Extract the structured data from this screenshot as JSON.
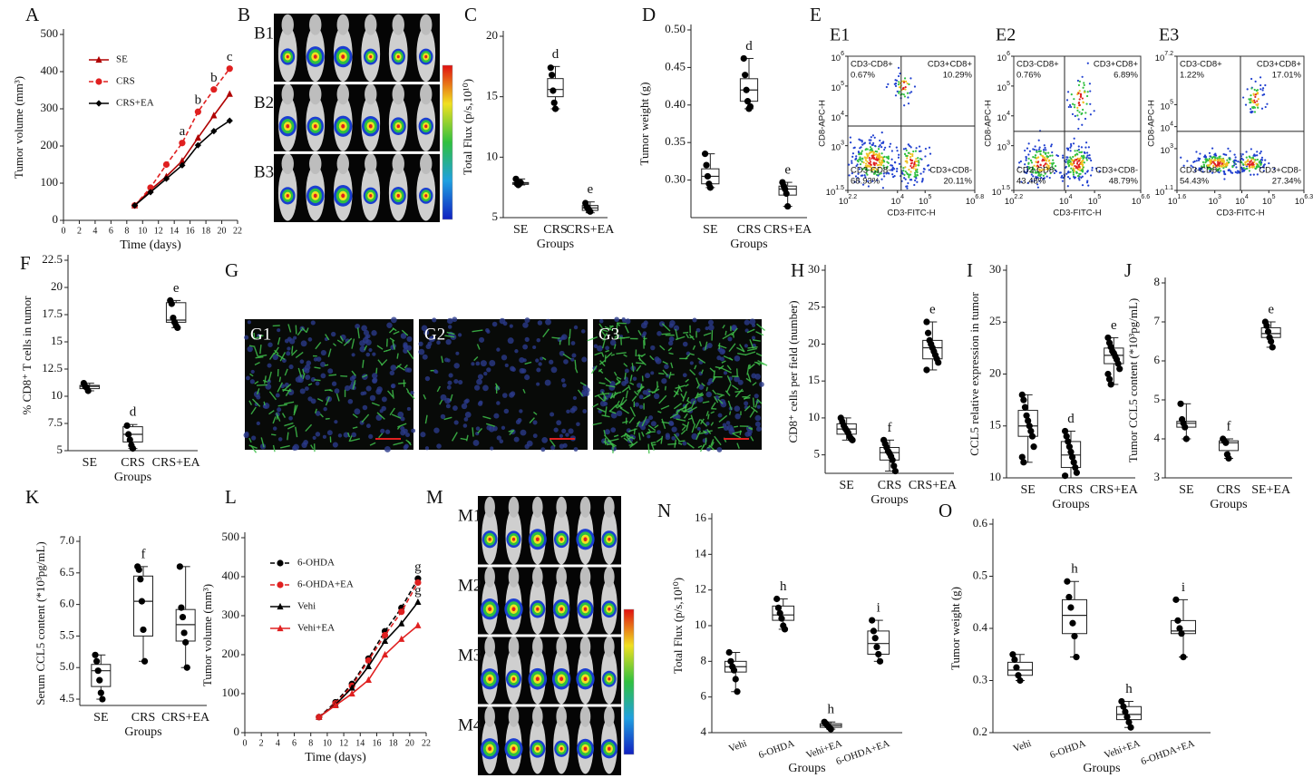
{
  "chart_data": [
    {
      "type": "line",
      "panel": "A",
      "xlabel": "Time (days)",
      "ylabel": "Tumor volume (mm³)",
      "x": [
        9,
        11,
        13,
        15,
        17,
        19,
        21
      ],
      "xlim": [
        0,
        22
      ],
      "xticks": [
        0,
        2,
        4,
        6,
        8,
        10,
        12,
        14,
        16,
        18,
        20,
        22
      ],
      "ylim": [
        0,
        500
      ],
      "yticks": [
        0,
        100,
        200,
        300,
        400,
        500
      ],
      "legend": "upper left",
      "series": [
        {
          "name": "SE",
          "color": "#b00000",
          "marker": "triangle",
          "dashed": false,
          "values": [
            40,
            82,
            118,
            160,
            222,
            282,
            340
          ]
        },
        {
          "name": "CRS",
          "color": "#e02020",
          "marker": "circle",
          "dashed": true,
          "values": [
            40,
            88,
            150,
            208,
            292,
            352,
            408
          ]
        },
        {
          "name": "CRS+EA",
          "color": "#000000",
          "marker": "diamond",
          "dashed": false,
          "values": [
            40,
            76,
            112,
            148,
            202,
            240,
            268
          ]
        }
      ],
      "annotations": [
        {
          "text": "a",
          "x": 15,
          "series": 1
        },
        {
          "text": "b",
          "x": 17,
          "series": 1
        },
        {
          "text": "b",
          "x": 19,
          "series": 1
        },
        {
          "text": "c",
          "x": 21,
          "series": 1
        }
      ]
    },
    {
      "type": "box",
      "panel": "C",
      "xlabel": "Groups",
      "ylabel": "Total Flux (p/s,10¹⁰)",
      "categories": [
        "SE",
        "CRS",
        "CRS+EA"
      ],
      "ylim": [
        5,
        20
      ],
      "yticks": [
        5,
        10,
        15,
        20
      ],
      "boxes": [
        {
          "min": 7.7,
          "q1": 7.75,
          "median": 7.85,
          "q3": 7.9,
          "max": 8.2
        },
        {
          "min": 14,
          "q1": 15,
          "median": 15.6,
          "q3": 16.5,
          "max": 17.5
        },
        {
          "min": 5.4,
          "q1": 5.6,
          "median": 5.8,
          "q3": 6,
          "max": 6.3
        }
      ],
      "points": [
        [
          8.2,
          7.8,
          7.7,
          7.8,
          7.9
        ],
        [
          17.4,
          16.8,
          15.5,
          14.5,
          14
        ],
        [
          6.2,
          5.9,
          5.8,
          5.6,
          5.5
        ]
      ],
      "letters": [
        null,
        "d",
        "e"
      ]
    },
    {
      "type": "box",
      "panel": "D",
      "xlabel": "Groups",
      "ylabel": "Tumor weight (g)",
      "categories": [
        "SE",
        "CRS",
        "CRS+EA"
      ],
      "ylim": [
        0.25,
        0.5
      ],
      "yticks": [
        {
          "value": 0.3,
          "label": "0.30"
        },
        0.35,
        {
          "value": 0.4,
          "label": "0.40"
        },
        0.45,
        {
          "value": 0.5,
          "label": "0.50"
        }
      ],
      "boxes": [
        {
          "min": 0.29,
          "q1": 0.295,
          "median": 0.305,
          "q3": 0.315,
          "max": 0.335
        },
        {
          "min": 0.395,
          "q1": 0.405,
          "median": 0.42,
          "q3": 0.435,
          "max": 0.462
        },
        {
          "min": 0.265,
          "q1": 0.28,
          "median": 0.288,
          "q3": 0.292,
          "max": 0.297
        }
      ],
      "points": [
        [
          0.335,
          0.32,
          0.305,
          0.295,
          0.29
        ],
        [
          0.462,
          0.44,
          0.42,
          0.405,
          0.395,
          0.398
        ],
        [
          0.297,
          0.292,
          0.288,
          0.282,
          0.265
        ]
      ],
      "letters": [
        null,
        "d",
        "e"
      ]
    },
    {
      "type": "box",
      "panel": "F",
      "xlabel": "Groups",
      "ylabel": "% CD8⁺ T cells in tumor",
      "categories": [
        "SE",
        "CRS",
        "CRS+EA"
      ],
      "ylim": [
        5,
        22.5
      ],
      "yticks": [
        5,
        7.5,
        10,
        12.5,
        15,
        17.5,
        20,
        22.5
      ],
      "boxes": [
        {
          "min": 10.5,
          "q1": 10.7,
          "median": 10.9,
          "q3": 11,
          "max": 11.2
        },
        {
          "min": 5.2,
          "q1": 5.8,
          "median": 6.5,
          "q3": 7.2,
          "max": 7.4
        },
        {
          "min": 16.3,
          "q1": 16.8,
          "median": 17,
          "q3": 18.6,
          "max": 18.8
        }
      ],
      "points": [
        [
          11.2,
          10.9,
          10.8,
          10.5
        ],
        [
          7.3,
          6.5,
          6,
          5.5,
          5.2
        ],
        [
          18.8,
          18.5,
          17.2,
          16.8,
          16.5,
          16.3
        ]
      ],
      "letters": [
        null,
        "d",
        "e"
      ]
    },
    {
      "type": "box",
      "panel": "H",
      "xlabel": "Groups",
      "ylabel": "CD8⁺ cells per field (number)",
      "categories": [
        "SE",
        "CRS",
        "CRS+EA"
      ],
      "ylim": [
        2.5,
        30
      ],
      "yticks": [
        5,
        10,
        15,
        20,
        25,
        30
      ],
      "boxes": [
        {
          "min": 7,
          "q1": 7.8,
          "median": 8.5,
          "q3": 9.2,
          "max": 10
        },
        {
          "min": 2.8,
          "q1": 4.3,
          "median": 5.3,
          "q3": 6,
          "max": 7
        },
        {
          "min": 16.5,
          "q1": 18,
          "median": 19.5,
          "q3": 20.5,
          "max": 23
        }
      ],
      "points": [
        [
          10,
          9.5,
          9,
          8.6,
          8.3,
          8,
          7.5,
          7.2,
          7
        ],
        [
          7,
          6.5,
          6,
          5.5,
          5.2,
          4.8,
          4.3,
          3.5,
          2.8
        ],
        [
          23,
          21.5,
          20.5,
          20,
          19.5,
          19,
          18.5,
          18,
          17.5,
          16.5
        ]
      ],
      "letters": [
        null,
        "f",
        "e"
      ]
    },
    {
      "type": "box",
      "panel": "I",
      "xlabel": "Groups",
      "ylabel": "CCL5 relative expression in tumor",
      "categories": [
        "SE",
        "CRS",
        "CRS+EA"
      ],
      "ylim": [
        10,
        30
      ],
      "yticks": [
        10,
        15,
        20,
        25,
        30
      ],
      "boxes": [
        {
          "min": 11.5,
          "q1": 14,
          "median": 15,
          "q3": 16.5,
          "max": 18
        },
        {
          "min": 10,
          "q1": 11,
          "median": 12.2,
          "q3": 13.5,
          "max": 14.5
        },
        {
          "min": 19,
          "q1": 21,
          "median": 21.8,
          "q3": 22.5,
          "max": 23.5
        }
      ],
      "points": [
        [
          18,
          17.5,
          16.8,
          16,
          15.5,
          15,
          14.5,
          14,
          13,
          12,
          11.5
        ],
        [
          14.5,
          14,
          13.5,
          13,
          12.5,
          12,
          11.5,
          11,
          10.5,
          10.2
        ],
        [
          23.5,
          23,
          22.6,
          22.2,
          22,
          21.7,
          21.4,
          21,
          20.5,
          20,
          19.5,
          19
        ]
      ],
      "letters": [
        null,
        "d",
        "e"
      ]
    },
    {
      "type": "box",
      "panel": "J",
      "xlabel": "Groups",
      "ylabel": "Tumor CCL5 content (*10³pg/mL)",
      "categories": [
        "SE",
        "CRS",
        "SE+EA"
      ],
      "ylim": [
        3,
        8
      ],
      "yticks": [
        3,
        4,
        5,
        6,
        7,
        8
      ],
      "boxes": [
        {
          "min": 4,
          "q1": 4.3,
          "median": 4.4,
          "q3": 4.45,
          "max": 4.9
        },
        {
          "min": 3.5,
          "q1": 3.7,
          "median": 3.9,
          "q3": 3.95,
          "max": 4
        },
        {
          "min": 6.35,
          "q1": 6.6,
          "median": 6.7,
          "q3": 6.85,
          "max": 7
        }
      ],
      "points": [
        [
          4.9,
          4.5,
          4.4,
          4.3,
          4
        ],
        [
          4,
          3.95,
          3.9,
          3.6,
          3.5
        ],
        [
          7,
          6.9,
          6.75,
          6.6,
          6.5,
          6.35
        ]
      ],
      "letters": [
        null,
        "f",
        "e"
      ]
    },
    {
      "type": "box",
      "panel": "K",
      "xlabel": "Groups",
      "ylabel": "Serum CCL5 content (*10³pg/mL)",
      "categories": [
        "SE",
        "CRS",
        "CRS+EA"
      ],
      "ylim": [
        4.4,
        7
      ],
      "yticks": [
        4.5,
        {
          "value": 5,
          "label": "5.0"
        },
        5.5,
        {
          "value": 6,
          "label": "6.0"
        },
        6.5,
        {
          "value": 7,
          "label": "7.0"
        }
      ],
      "boxes": [
        {
          "min": 4.5,
          "q1": 4.7,
          "median": 4.95,
          "q3": 5.05,
          "max": 5.2
        },
        {
          "min": 5.1,
          "q1": 5.5,
          "median": 6.05,
          "q3": 6.45,
          "max": 6.6
        },
        {
          "min": 5,
          "q1": 5.42,
          "median": 5.68,
          "q3": 5.92,
          "max": 6.6
        }
      ],
      "points": [
        [
          5.2,
          5.1,
          4.95,
          4.8,
          4.6,
          4.5
        ],
        [
          6.6,
          6.55,
          6.4,
          6.05,
          5.6,
          5.1
        ],
        [
          6.6,
          5.95,
          5.8,
          5.55,
          5.4,
          5
        ]
      ],
      "letters": [
        null,
        "f",
        null
      ]
    },
    {
      "type": "line",
      "panel": "L",
      "xlabel": "Time (days)",
      "ylabel": "Tumor volume (mm³)",
      "x": [
        9,
        11,
        13,
        15,
        17,
        19,
        21
      ],
      "xlim": [
        0,
        22
      ],
      "xticks": [
        0,
        2,
        4,
        6,
        8,
        10,
        12,
        14,
        16,
        18,
        20,
        22
      ],
      "ylim": [
        0,
        500
      ],
      "yticks": [
        0,
        100,
        200,
        300,
        400,
        500
      ],
      "legend": "upper left",
      "series": [
        {
          "name": "6-OHDA",
          "color": "#000000",
          "marker": "circle",
          "dashed": true,
          "values": [
            40,
            78,
            125,
            190,
            260,
            320,
            395
          ]
        },
        {
          "name": "6-OHDA+EA",
          "color": "#e02020",
          "marker": "circle",
          "dashed": true,
          "values": [
            40,
            75,
            120,
            185,
            250,
            310,
            385
          ]
        },
        {
          "name": "Vehi",
          "color": "#000000",
          "marker": "triangle",
          "dashed": false,
          "values": [
            40,
            72,
            115,
            170,
            235,
            280,
            335
          ]
        },
        {
          "name": "Vehi+EA",
          "color": "#e02020",
          "marker": "triangle",
          "dashed": false,
          "values": [
            40,
            70,
            100,
            135,
            200,
            240,
            275
          ]
        }
      ],
      "annotations": [
        {
          "text": "g",
          "x": 21,
          "series": 0
        },
        {
          "text": "g",
          "x": 21,
          "series": 2
        }
      ]
    },
    {
      "type": "box",
      "panel": "N",
      "xlabel": "Groups",
      "ylabel": "Total Flux (p/s,10¹⁰)",
      "categories": [
        "Vehi",
        "6-OHDA",
        "Vehi+EA",
        "6-OHDA+EA"
      ],
      "xtick_rotation": -20,
      "ylim": [
        4,
        16
      ],
      "yticks": [
        4,
        6,
        8,
        10,
        12,
        14,
        16
      ],
      "boxes": [
        {
          "min": 6.3,
          "q1": 7.4,
          "median": 7.7,
          "q3": 8,
          "max": 8.5
        },
        {
          "min": 9.8,
          "q1": 10.3,
          "median": 10.6,
          "q3": 11.1,
          "max": 11.5
        },
        {
          "min": 4.2,
          "q1": 4.3,
          "median": 4.4,
          "q3": 4.5,
          "max": 4.6
        },
        {
          "min": 8,
          "q1": 8.4,
          "median": 9,
          "q3": 9.7,
          "max": 10.3
        }
      ],
      "points": [
        [
          8.5,
          8,
          7.7,
          7.5,
          7,
          6.3
        ],
        [
          11.5,
          11,
          10.7,
          10.4,
          10,
          9.8
        ],
        [
          4.6,
          4.5,
          4.4,
          4.3,
          4.2
        ],
        [
          10.3,
          9.7,
          9.3,
          8.8,
          8.4,
          8
        ]
      ],
      "letters": [
        null,
        "h",
        "h",
        "i"
      ]
    },
    {
      "type": "box",
      "panel": "O",
      "xlabel": "Groups",
      "ylabel": "Tumor weight (g)",
      "categories": [
        "Vehi",
        "6-OHDA",
        "Vehi+EA",
        "6-OHDA+EA"
      ],
      "xtick_rotation": -20,
      "ylim": [
        0.2,
        0.6
      ],
      "yticks": [
        0.2,
        0.3,
        0.4,
        0.5,
        0.6
      ],
      "boxes": [
        {
          "min": 0.3,
          "q1": 0.31,
          "median": 0.32,
          "q3": 0.335,
          "max": 0.35
        },
        {
          "min": 0.345,
          "q1": 0.39,
          "median": 0.425,
          "q3": 0.455,
          "max": 0.49
        },
        {
          "min": 0.21,
          "q1": 0.225,
          "median": 0.235,
          "q3": 0.25,
          "max": 0.26
        },
        {
          "min": 0.345,
          "q1": 0.39,
          "median": 0.395,
          "q3": 0.415,
          "max": 0.455
        }
      ],
      "points": [
        [
          0.35,
          0.34,
          0.325,
          0.31,
          0.3
        ],
        [
          0.49,
          0.46,
          0.44,
          0.41,
          0.385,
          0.345
        ],
        [
          0.26,
          0.25,
          0.24,
          0.23,
          0.22,
          0.21
        ],
        [
          0.455,
          0.415,
          0.4,
          0.39,
          0.345
        ]
      ],
      "letters": [
        null,
        "h",
        "h",
        "i"
      ]
    }
  ],
  "figure_panels": [
    {
      "panel": "B",
      "labels": [
        "B1",
        "B2",
        "B3"
      ]
    },
    {
      "panel": "E",
      "base": "10",
      "xlabel": "CD3-FITC-H",
      "ylabel": "CD8-APC-H",
      "plots": [
        {
          "label": "E1",
          "xlim": [
            2.2,
            6.8
          ],
          "xticks": [
            2.2,
            4,
            5,
            6.8
          ],
          "ylim": [
            1.5,
            6
          ],
          "yticks": [
            1.5,
            3,
            4,
            5,
            6
          ],
          "quadrants": [
            {
              "name": "CD3-CD8+",
              "value": "0.67%"
            },
            {
              "name": "CD3+CD8+",
              "value": "10.29%"
            },
            {
              "name": "CD3-CD8-",
              "value": "68.93%"
            },
            {
              "name": "CD3+CD8-",
              "value": "20.11%"
            }
          ]
        },
        {
          "label": "E2",
          "xlim": [
            2.2,
            6.6
          ],
          "xticks": [
            2.2,
            4,
            5,
            6.6
          ],
          "ylim": [
            1.5,
            6
          ],
          "yticks": [
            1.5,
            3,
            4,
            5,
            6
          ],
          "quadrants": [
            {
              "name": "CD3-CD8+",
              "value": "0.76%"
            },
            {
              "name": "CD3+CD8+",
              "value": "6.89%"
            },
            {
              "name": "CD3-CD8-",
              "value": "43.48%"
            },
            {
              "name": "CD3+CD8-",
              "value": "48.79%"
            }
          ]
        },
        {
          "label": "E3",
          "xlim": [
            1.6,
            6.3
          ],
          "xticks": [
            1.6,
            3,
            4,
            5,
            6.3
          ],
          "ylim": [
            1.1,
            7.2
          ],
          "yticks": [
            1.1,
            3,
            4,
            5,
            7.2
          ],
          "quadrants": [
            {
              "name": "CD3-CD8+",
              "value": "1.22%"
            },
            {
              "name": "CD3+CD8+",
              "value": "17.01%"
            },
            {
              "name": "CD3-CD8-",
              "value": "54.43%"
            },
            {
              "name": "CD3+CD8-",
              "value": "27.34%"
            }
          ]
        }
      ]
    },
    {
      "panel": "G",
      "labels": [
        "G1",
        "G2",
        "G3"
      ]
    },
    {
      "panel": "M",
      "labels": [
        "M1",
        "M2",
        "M3",
        "M4"
      ]
    }
  ]
}
